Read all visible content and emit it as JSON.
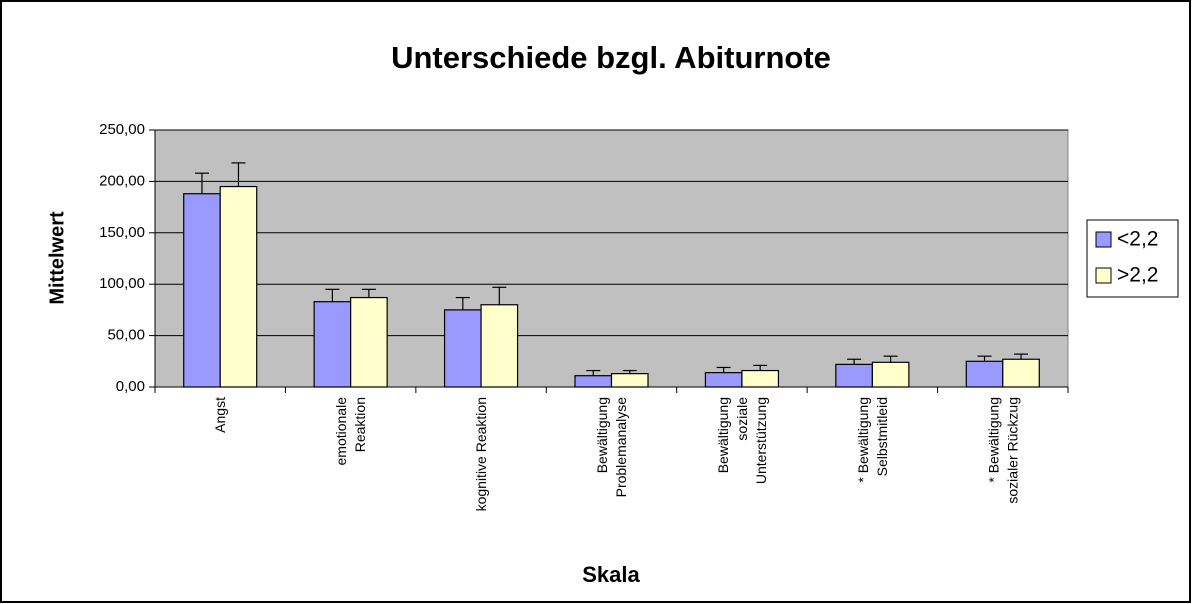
{
  "chart_data": {
    "type": "bar",
    "title": "Unterschiede bzgl. Abiturnote",
    "x_label": "Skala",
    "y_label": "Mittelwert",
    "categories": [
      "Angst",
      "emotionale\nReaktion",
      "kognitive Reaktion",
      "Bewältigung\nProblemanalyse",
      "Bewältigung\nsoziale\nUnterstützung",
      "*  Bewältigung\nSelbstmitleid",
      "* Bewältigung\nsozialer Rückzug"
    ],
    "series": [
      {
        "name": "<2,2",
        "color": "#9999ff",
        "values": [
          188,
          83,
          75,
          11,
          14,
          22,
          25
        ],
        "errors": [
          20,
          12,
          12,
          5,
          5,
          5,
          5
        ]
      },
      {
        "name": ">2,2",
        "color": "#ffffcc",
        "values": [
          195,
          87,
          80,
          13,
          16,
          24,
          27
        ],
        "errors": [
          23,
          8,
          17,
          3,
          5,
          6,
          5
        ]
      }
    ],
    "ylim": [
      0,
      250
    ],
    "yticks": [
      {
        "value": 0,
        "label": "0,00"
      },
      {
        "value": 50,
        "label": "50,00"
      },
      {
        "value": 100,
        "label": "100,00"
      },
      {
        "value": 150,
        "label": "150,00"
      },
      {
        "value": 200,
        "label": "200,00"
      },
      {
        "value": 250,
        "label": "250,00"
      }
    ],
    "grid": true,
    "legend": "right",
    "plot_background": "#c0c0c0"
  }
}
